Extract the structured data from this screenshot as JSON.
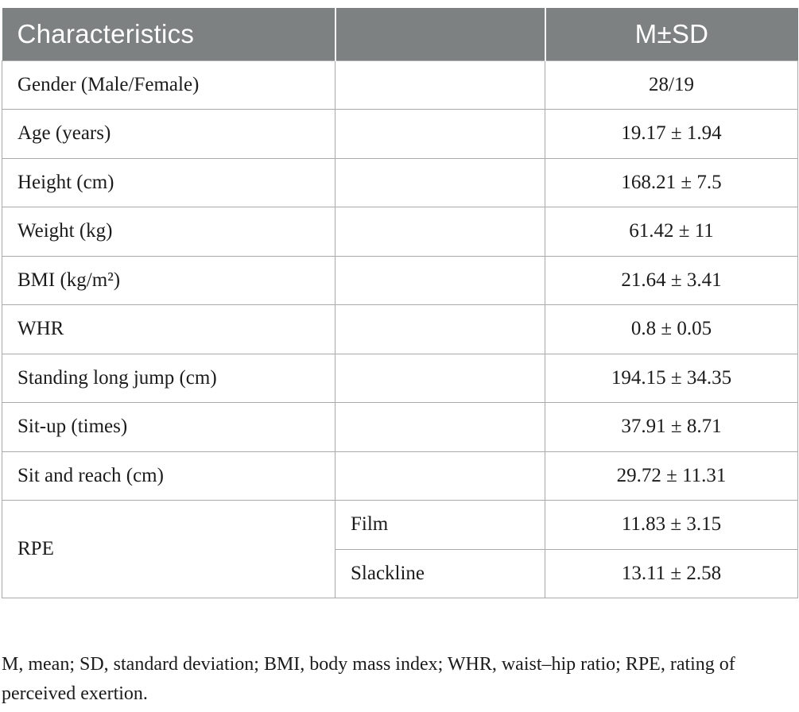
{
  "table": {
    "header": {
      "characteristics": "Characteristics",
      "spacer": "",
      "msd": "M±SD"
    },
    "rows": [
      {
        "label": "Gender (Male/Female)",
        "sub": "",
        "value": "28/19"
      },
      {
        "label": "Age (years)",
        "sub": "",
        "value": "19.17 ± 1.94"
      },
      {
        "label": "Height (cm)",
        "sub": "",
        "value": "168.21 ± 7.5"
      },
      {
        "label": "Weight (kg)",
        "sub": "",
        "value": "61.42 ± 11"
      },
      {
        "label": "BMI (kg/m²)",
        "sub": "",
        "value": "21.64 ± 3.41"
      },
      {
        "label": "WHR",
        "sub": "",
        "value": "0.8 ± 0.05"
      },
      {
        "label": "Standing long jump (cm)",
        "sub": "",
        "value": "194.15 ± 34.35"
      },
      {
        "label": "Sit-up (times)",
        "sub": "",
        "value": "37.91 ± 8.71"
      },
      {
        "label": "Sit and reach (cm)",
        "sub": "",
        "value": "29.72 ± 11.31"
      }
    ],
    "rpe": {
      "label": "RPE",
      "subrows": [
        {
          "sub": "Film",
          "value": "11.83 ± 3.15"
        },
        {
          "sub": "Slackline",
          "value": "13.11 ± 2.58"
        }
      ]
    }
  },
  "footnote": "M, mean; SD, standard deviation; BMI, body mass index; WHR, waist–hip ratio; RPE, rating of perceived exertion.",
  "colors": {
    "header_bg": "#7e8181",
    "header_text": "#ffffff",
    "border": "#aaaaaa",
    "body_text": "#1b1b1b"
  }
}
